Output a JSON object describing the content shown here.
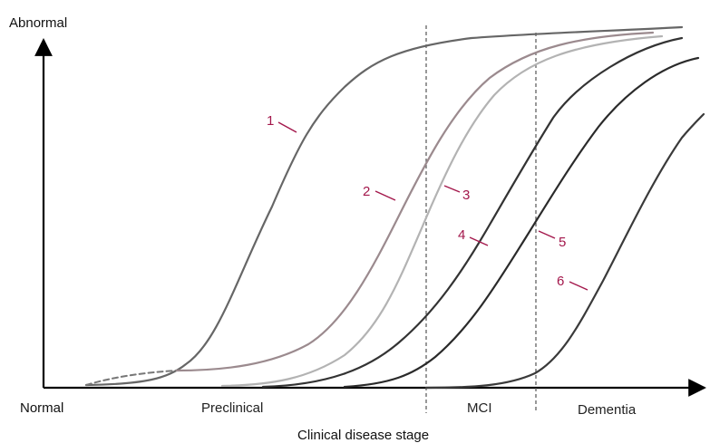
{
  "axes": {
    "y_top_label": "Abnormal",
    "x_origin_label": "Normal",
    "x_title": "Clinical disease stage"
  },
  "stages": [
    {
      "id": "preclinical",
      "label": "Preclinical"
    },
    {
      "id": "mci",
      "label": "MCI"
    },
    {
      "id": "dementia",
      "label": "Dementia"
    }
  ],
  "curve_labels": [
    "1",
    "2",
    "3",
    "4",
    "5",
    "6"
  ],
  "colors": {
    "axis": "#000000",
    "label_accent": "#a3174b",
    "divider": "#555555",
    "curve_1": "#666666",
    "curve_2": "#9b8a8e",
    "curve_3": "#b3b3b3",
    "curve_4": "#333333",
    "curve_5": "#2a2a2a",
    "curve_6": "#3a3a3a"
  }
}
